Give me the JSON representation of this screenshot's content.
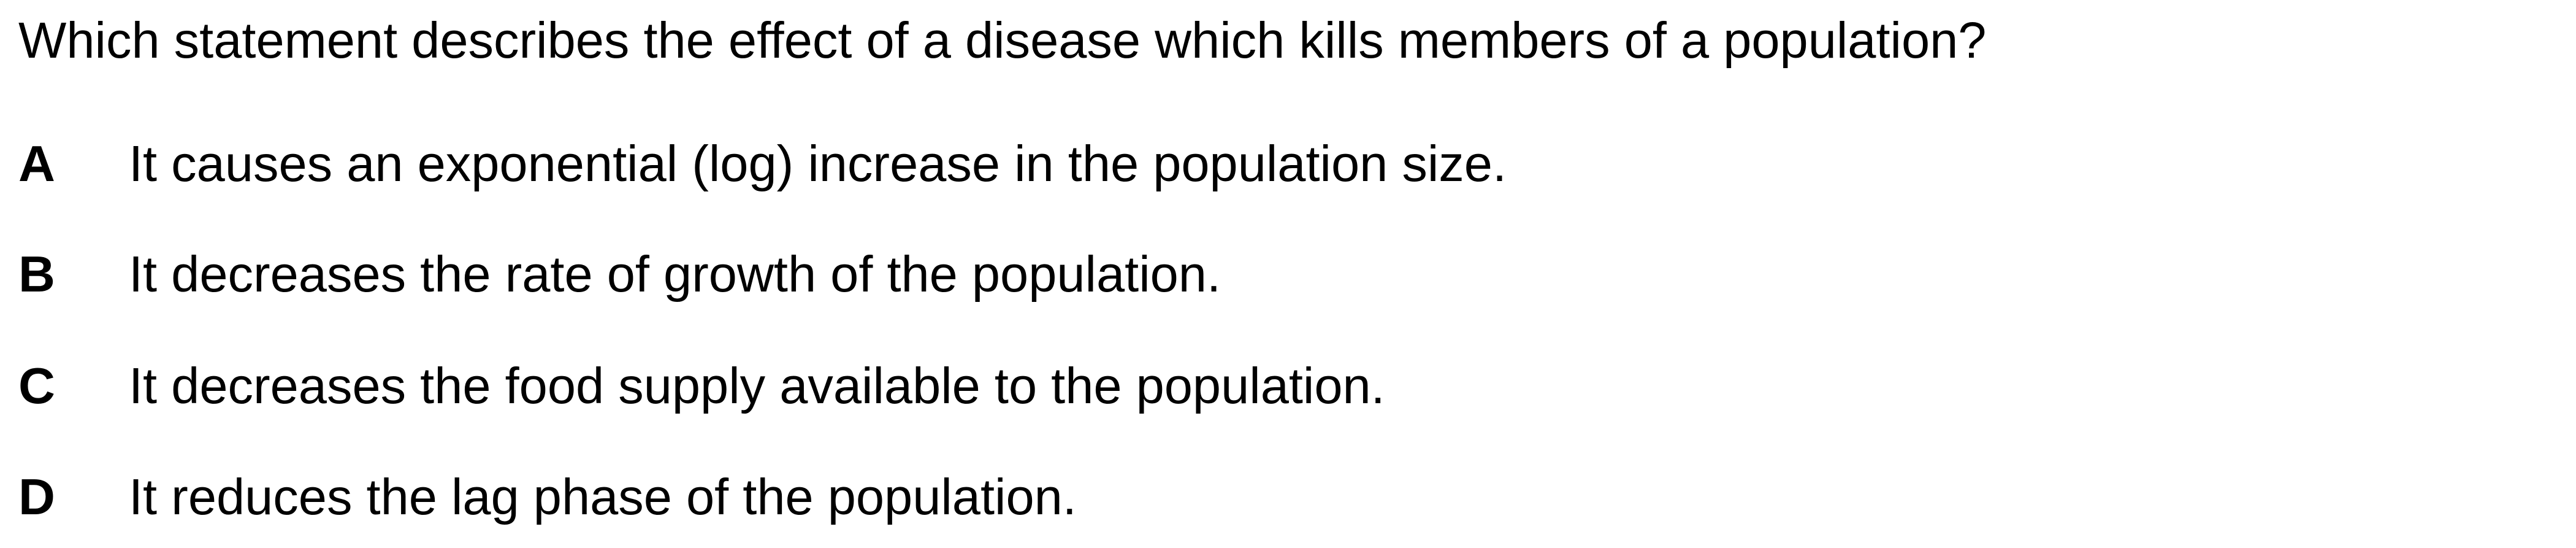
{
  "question": {
    "text": "Which statement describes the effect of a disease which kills members of a population?"
  },
  "options": [
    {
      "letter": "A",
      "text": "It causes an exponential (log) increase in the population size."
    },
    {
      "letter": "B",
      "text": "It decreases the rate of growth of the population."
    },
    {
      "letter": "C",
      "text": "It decreases the food supply available to the population."
    },
    {
      "letter": "D",
      "text": "It reduces the lag phase of the population."
    }
  ]
}
